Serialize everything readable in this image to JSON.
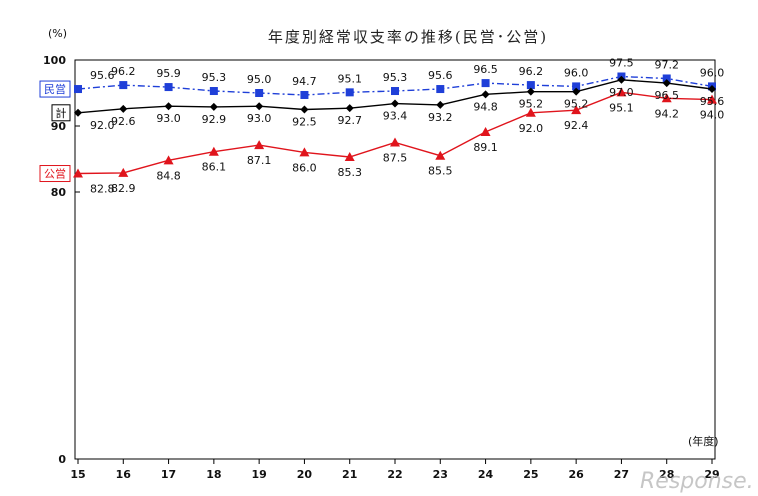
{
  "chart_data": {
    "type": "line",
    "title": "年度別経常収支率の推移(民営･公営)",
    "ylabel": "(%)",
    "xlabel": "(年度)",
    "ylim": [
      0,
      100
    ],
    "yticks": [
      0,
      80,
      90,
      100
    ],
    "categories": [
      "15",
      "16",
      "17",
      "18",
      "19",
      "20",
      "21",
      "22",
      "23",
      "24",
      "25",
      "26",
      "27",
      "28",
      "29"
    ],
    "series": [
      {
        "name": "民営",
        "key": "minei",
        "color": "#1f3fd8",
        "marker": "square",
        "dash": "dashdot",
        "values": [
          95.6,
          96.2,
          95.9,
          95.3,
          95.0,
          94.7,
          95.1,
          95.3,
          95.6,
          96.5,
          96.2,
          96.0,
          97.5,
          97.2,
          96.0
        ]
      },
      {
        "name": "計",
        "key": "kei",
        "color": "#000000",
        "marker": "diamond",
        "dash": "solid",
        "values": [
          92.0,
          92.6,
          93.0,
          92.9,
          93.0,
          92.5,
          92.7,
          93.4,
          93.2,
          94.8,
          95.2,
          95.2,
          97.0,
          96.5,
          95.6
        ]
      },
      {
        "name": "公営",
        "key": "koei",
        "color": "#e0141c",
        "marker": "triangle",
        "dash": "solid",
        "values": [
          82.8,
          82.9,
          84.8,
          86.1,
          87.1,
          86.0,
          85.3,
          87.5,
          85.5,
          89.1,
          92.0,
          92.4,
          95.1,
          94.2,
          94.0
        ]
      }
    ]
  },
  "watermark": "Response."
}
